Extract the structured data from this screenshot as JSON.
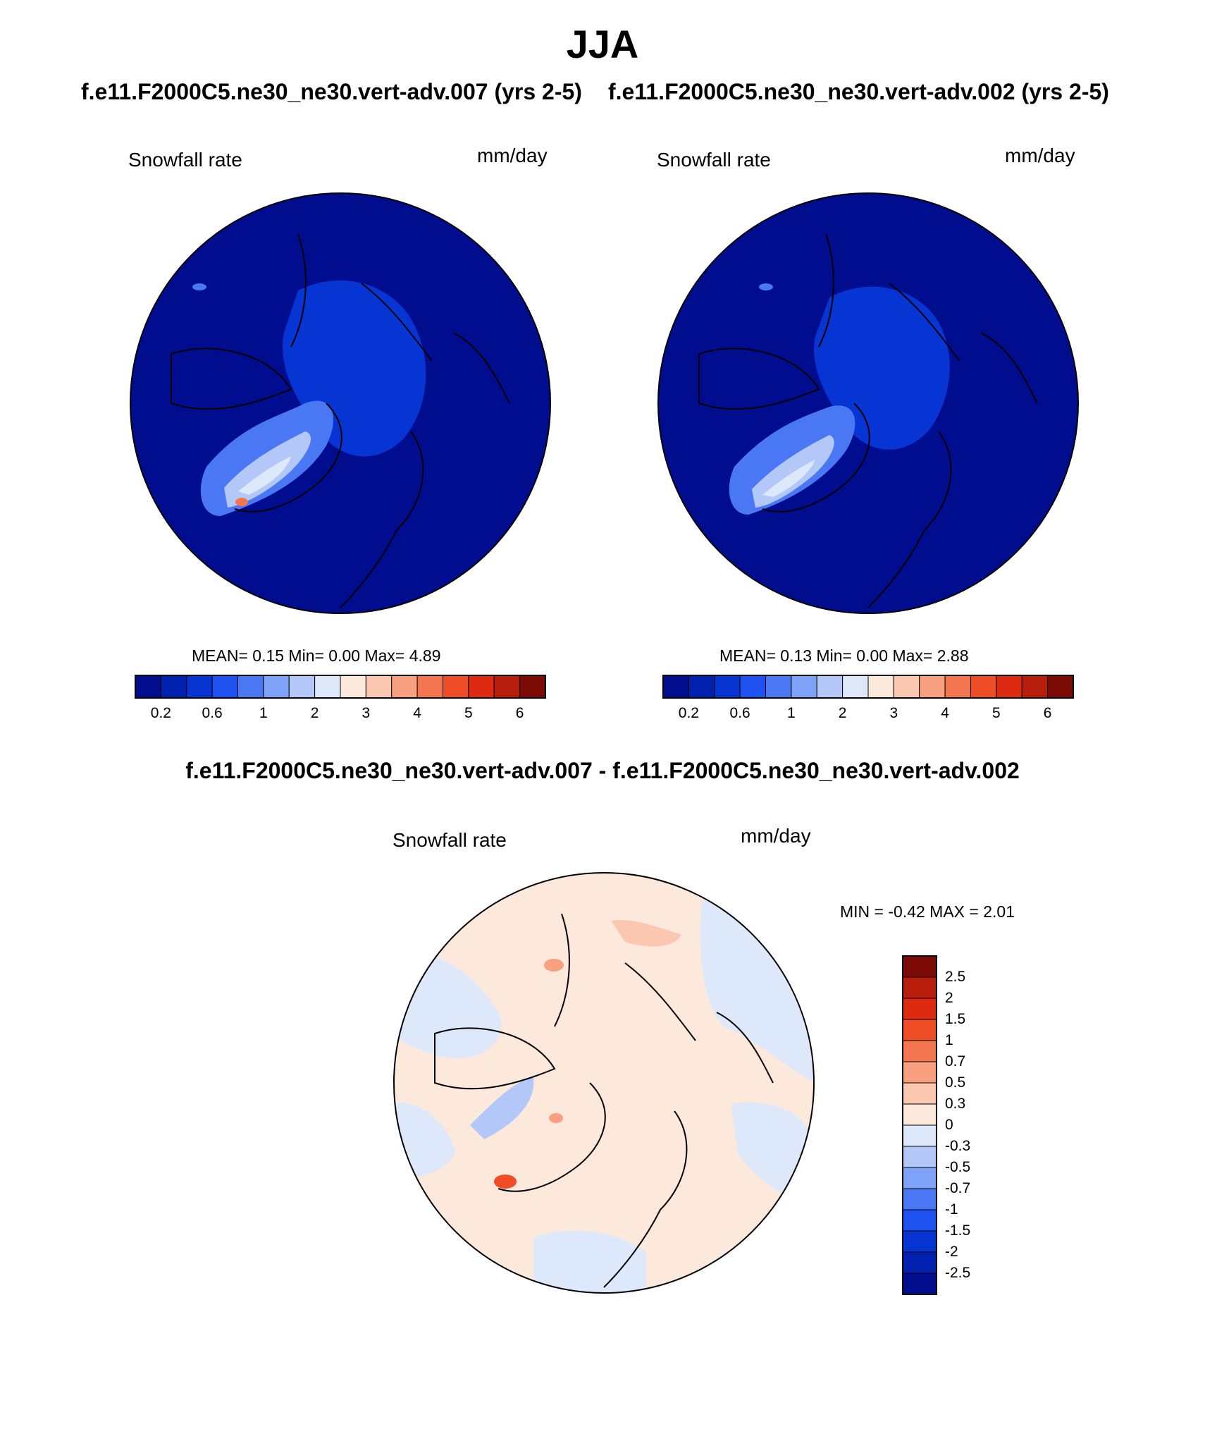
{
  "title": "JJA",
  "cases": {
    "left": "f.e11.F2000C5.ne30_ne30.vert-adv.007 (yrs 2-5)",
    "right": "f.e11.F2000C5.ne30_ne30.vert-adv.002 (yrs 2-5)"
  },
  "panels": [
    {
      "variable": "Snowfall rate",
      "units": "mm/day",
      "stats": "MEAN=  0.15  Min=   0.00  Max=   4.89"
    },
    {
      "variable": "Snowfall rate",
      "units": "mm/day",
      "stats": "MEAN=  0.13  Min=   0.00  Max=   2.88"
    }
  ],
  "difference": {
    "title": "f.e11.F2000C5.ne30_ne30.vert-adv.007 - f.e11.F2000C5.ne30_ne30.vert-adv.002",
    "variable": "Snowfall rate",
    "units": "mm/day",
    "minmax": "MIN =  -0.42 MAX =   2.01"
  },
  "colorbar_top": {
    "tick_labels": [
      "0.2",
      "0.6",
      "1",
      "2",
      "3",
      "4",
      "5",
      "6"
    ],
    "colors": [
      "#000d8f",
      "#0020b0",
      "#0635d4",
      "#1d52f0",
      "#4a78f5",
      "#7ea2f7",
      "#b3c8f8",
      "#dde8fb",
      "#fde8dc",
      "#fbc7ae",
      "#f8a07f",
      "#f47650",
      "#ef4d26",
      "#de2a10",
      "#b81e0b",
      "#7d0b05"
    ]
  },
  "colorbar_diff": {
    "tick_labels": [
      "2.5",
      "2",
      "1.5",
      "1",
      "0.7",
      "0.5",
      "0.3",
      "0",
      "-0.3",
      "-0.5",
      "-0.7",
      "-1",
      "-1.5",
      "-2",
      "-2.5"
    ],
    "colors": [
      "#7d0b05",
      "#b81e0b",
      "#de2a10",
      "#ef4d26",
      "#f47650",
      "#f8a07f",
      "#fbc7ae",
      "#fde8dc",
      "#dde8fb",
      "#b3c8f8",
      "#7ea2f7",
      "#4a78f5",
      "#1d52f0",
      "#0635d4",
      "#0020b0",
      "#000d8f"
    ]
  },
  "map_colors": {
    "ocean_low": "#000d8f",
    "arctic": "#0635d4",
    "greenland_mid": "#4a78f5",
    "greenland_high": "#dde8fb",
    "peak": "#f47650",
    "diff_pos": "#fde8dc",
    "diff_neg": "#dde8fb",
    "diff_peak": "#ef4d26"
  }
}
